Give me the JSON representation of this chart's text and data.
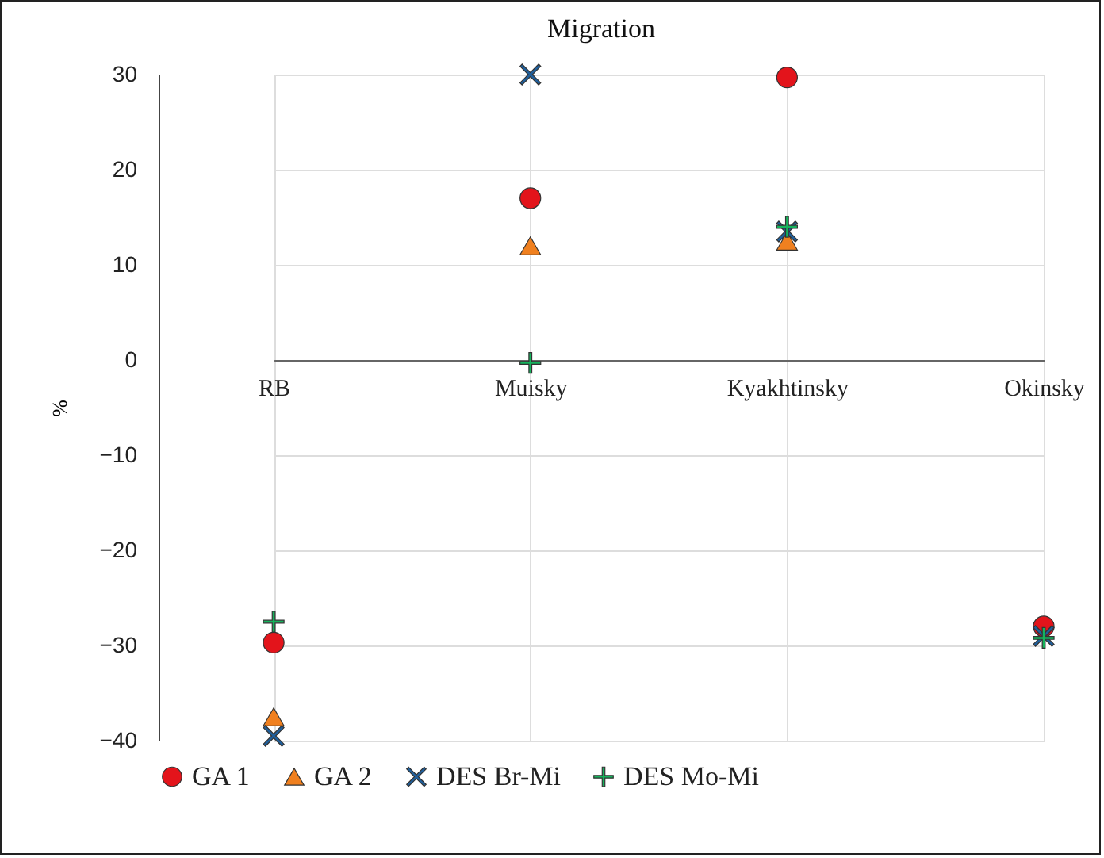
{
  "chart_data": {
    "type": "scatter",
    "title": "Migration",
    "ylabel": "%",
    "categories": [
      "RB",
      "Muisky",
      "Kyakhtinsky",
      "Okinsky"
    ],
    "ylim": [
      -40,
      30
    ],
    "yticks": [
      -40,
      -30,
      -20,
      -10,
      0,
      10,
      20,
      30
    ],
    "grid": true,
    "legend": "bottom",
    "series": [
      {
        "name": "GA 1",
        "color": "#e3141b",
        "marker": "circle",
        "values": [
          -29.7,
          17,
          29.7,
          -28
        ]
      },
      {
        "name": "GA 2",
        "color": "#f0801f",
        "marker": "triangle",
        "values": [
          -37.5,
          12,
          12.5,
          null
        ]
      },
      {
        "name": "DES Br-Mi",
        "color": "#1f5f9c",
        "marker": "x",
        "values": [
          -39.5,
          30,
          13.5,
          -29
        ]
      },
      {
        "name": "DES Mo-Mi",
        "color": "#15b35c",
        "marker": "plus",
        "values": [
          -27.5,
          -0.3,
          14,
          -29.2
        ]
      }
    ]
  }
}
